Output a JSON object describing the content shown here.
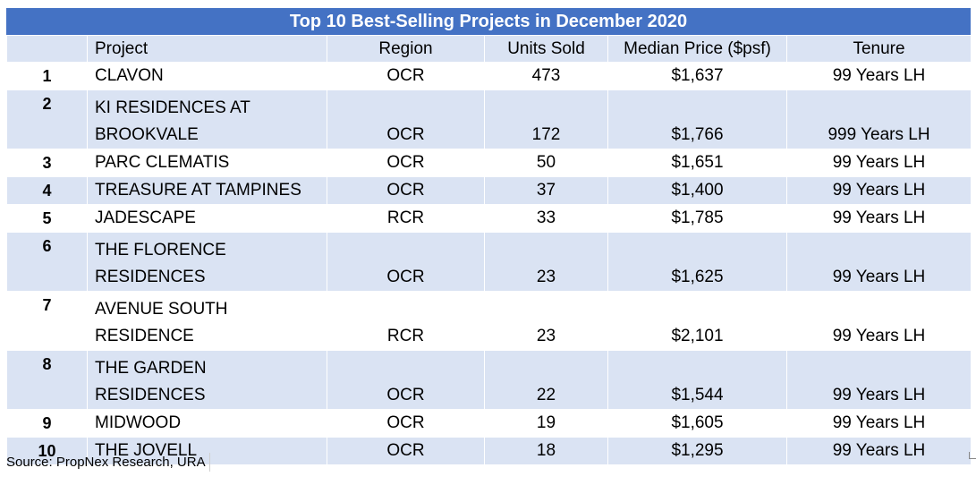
{
  "title": "Top 10 Best-Selling Projects in December 2020",
  "headers": [
    "",
    "Project",
    "Region",
    "Units Sold",
    "Median Price ($psf)",
    "Tenure"
  ],
  "rows": [
    {
      "rank": "1",
      "project_line1": "CLAVON",
      "project_line2": "",
      "region": "OCR",
      "units": "473",
      "price": "$1,637",
      "tenure": "99 Years LH"
    },
    {
      "rank": "2",
      "project_line1": "KI RESIDENCES AT",
      "project_line2": "BROOKVALE",
      "region": "OCR",
      "units": "172",
      "price": "$1,766",
      "tenure": "999 Years LH"
    },
    {
      "rank": "3",
      "project_line1": "PARC CLEMATIS",
      "project_line2": "",
      "region": "OCR",
      "units": "50",
      "price": "$1,651",
      "tenure": "99 Years LH"
    },
    {
      "rank": "4",
      "project_line1": "TREASURE AT TAMPINES",
      "project_line2": "",
      "region": "OCR",
      "units": "37",
      "price": "$1,400",
      "tenure": "99 Years LH"
    },
    {
      "rank": "5",
      "project_line1": "JADESCAPE",
      "project_line2": "",
      "region": "RCR",
      "units": "33",
      "price": "$1,785",
      "tenure": "99 Years LH"
    },
    {
      "rank": "6",
      "project_line1": "THE FLORENCE",
      "project_line2": "RESIDENCES",
      "region": "OCR",
      "units": "23",
      "price": "$1,625",
      "tenure": "99 Years LH"
    },
    {
      "rank": "7",
      "project_line1": "AVENUE SOUTH",
      "project_line2": "RESIDENCE",
      "region": "RCR",
      "units": "23",
      "price": "$2,101",
      "tenure": "99 Years LH"
    },
    {
      "rank": "8",
      "project_line1": "THE GARDEN",
      "project_line2": "RESIDENCES",
      "region": "OCR",
      "units": "22",
      "price": "$1,544",
      "tenure": "99 Years LH"
    },
    {
      "rank": "9",
      "project_line1": "MIDWOOD",
      "project_line2": "",
      "region": "OCR",
      "units": "19",
      "price": "$1,605",
      "tenure": "99 Years LH"
    },
    {
      "rank": "10",
      "project_line1": "THE JOVELL",
      "project_line2": "",
      "region": "OCR",
      "units": "18",
      "price": "$1,295",
      "tenure": "99 Years LH"
    }
  ],
  "source": "Source: PropNex Research, URA",
  "colors": {
    "title_bg": "#4472c4",
    "band": "#dae3f3",
    "white": "#ffffff"
  }
}
